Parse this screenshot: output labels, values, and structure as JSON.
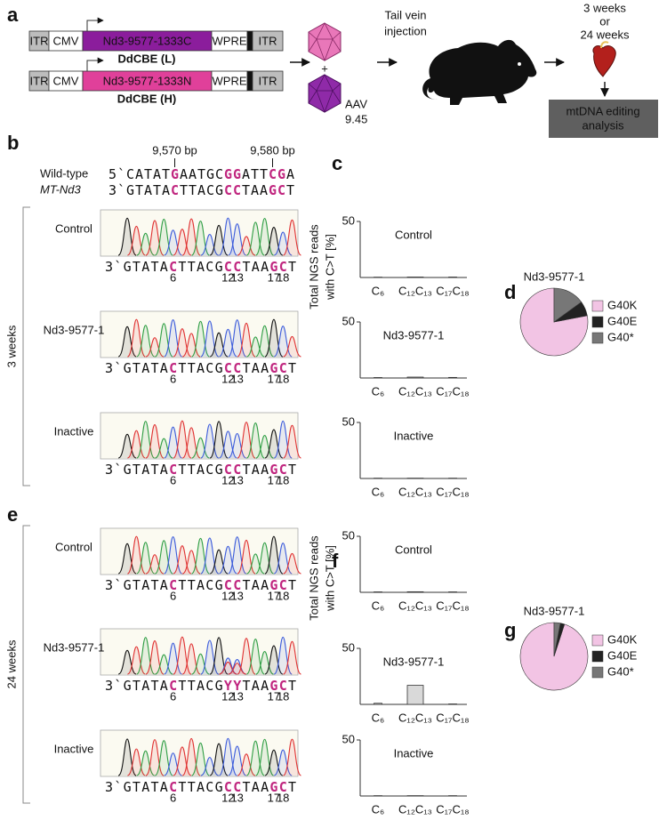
{
  "panel_labels": [
    "a",
    "b",
    "c",
    "d",
    "e",
    "f",
    "g"
  ],
  "constructs": [
    {
      "itr": "ITR",
      "promoter": "CMV",
      "gene": "Nd3-9577-1333C",
      "wpre": "WPRE",
      "itr_end": "ITR",
      "name": "DdCBE (L)"
    },
    {
      "itr": "ITR",
      "promoter": "CMV",
      "gene": "Nd3-9577-1333N",
      "wpre": "WPRE",
      "itr_end": "ITR",
      "name": "DdCBE (H)"
    }
  ],
  "aav": {
    "plus": "+",
    "name": "AAV",
    "serotype": "9.45"
  },
  "injection": [
    "Tail vein",
    "injection"
  ],
  "timepoints": [
    "3 weeks",
    "or",
    "24 weeks"
  ],
  "analysis": [
    "mtDNA editing",
    "analysis"
  ],
  "reference": {
    "coordinates": [
      "9,570 bp",
      "9,580 bp"
    ],
    "name": "Wild-type",
    "gene": "MT-Nd3",
    "top": "5`CATATGAATGCGGATTCGA",
    "bottom": "3`GTATACTTACGCCTAAGCT"
  },
  "edited_positions": [
    6,
    12,
    13,
    17,
    18
  ],
  "chromatograms": [
    {
      "timepoint": "3 weeks",
      "traces": [
        {
          "label": "Control",
          "sequence": "3`GTATACTTACGCCTAAGCT"
        },
        {
          "label": "Nd3-9577-1",
          "sequence": "3`GTATACTTACGCCTAAGCT"
        },
        {
          "label": "Inactive",
          "sequence": "3`GTATACTTACGCCTAAGCT"
        }
      ]
    },
    {
      "timepoint": "24 weeks",
      "traces": [
        {
          "label": "Control",
          "sequence": "3`GTATACTTACGCCTAAGCT"
        },
        {
          "label": "Nd3-9577-1",
          "sequence": "3`GTATACTTACGYYTAAGCT"
        },
        {
          "label": "Inactive",
          "sequence": "3`GTATACTTACGCCTAAGCT"
        }
      ]
    }
  ],
  "y_axis_title": [
    "Total NGS reads",
    "with C>T [%]"
  ],
  "chart_data": [
    {
      "type": "bar",
      "title": "Control",
      "categories": [
        "C₆",
        "C₁₂C₁₃",
        "C₁₇C₁₈"
      ],
      "values": [
        0.3,
        0.4,
        0.4
      ],
      "color": "#d9d9d9",
      "ylim": [
        0,
        50
      ],
      "yticks": [
        50
      ]
    },
    {
      "type": "bar",
      "title": "Nd3-9577-1",
      "categories": [
        "C₆",
        "C₁₂C₁₃",
        "C₁₇C₁₈"
      ],
      "values": [
        0.4,
        0.8,
        0.5
      ],
      "color": "#d9d9d9",
      "ylim": [
        0,
        50
      ],
      "yticks": [
        50
      ]
    },
    {
      "type": "bar",
      "title": "Inactive",
      "categories": [
        "C₆",
        "C₁₂C₁₃",
        "C₁₇C₁₈"
      ],
      "values": [
        0.3,
        0.3,
        0.3
      ],
      "color": "#d9d9d9",
      "ylim": [
        0,
        50
      ],
      "yticks": [
        50
      ]
    },
    {
      "type": "pie",
      "title": "Nd3-9577-1",
      "categories": [
        "G40K",
        "G40E",
        "G40*"
      ],
      "values": [
        78,
        7,
        15
      ],
      "colors": [
        "#f2c4e4",
        "#222222",
        "#777777"
      ]
    },
    {
      "type": "bar",
      "title": "Control",
      "categories": [
        "C₆",
        "C₁₂C₁₃",
        "C₁₇C₁₈"
      ],
      "values": [
        0.4,
        0.5,
        0.4
      ],
      "color": "#d9d9d9",
      "ylim": [
        0,
        50
      ],
      "yticks": [
        50
      ]
    },
    {
      "type": "bar",
      "title": "Nd3-9577-1",
      "categories": [
        "C₆",
        "C₁₂C₁₃",
        "C₁₇C₁₈"
      ],
      "values": [
        1,
        17,
        0.4
      ],
      "color": "#d9d9d9",
      "ylim": [
        0,
        50
      ],
      "yticks": [
        50
      ]
    },
    {
      "type": "bar",
      "title": "Inactive",
      "categories": [
        "C₆",
        "C₁₂C₁₃",
        "C₁₇C₁₈"
      ],
      "values": [
        0.3,
        0.3,
        0.3
      ],
      "color": "#d9d9d9",
      "ylim": [
        0,
        50
      ],
      "yticks": [
        50
      ]
    },
    {
      "type": "pie",
      "title": "Nd3-9577-1",
      "categories": [
        "G40K",
        "G40E",
        "G40*"
      ],
      "values": [
        95,
        2,
        3
      ],
      "colors": [
        "#f2c4e4",
        "#222222",
        "#777777"
      ]
    }
  ]
}
